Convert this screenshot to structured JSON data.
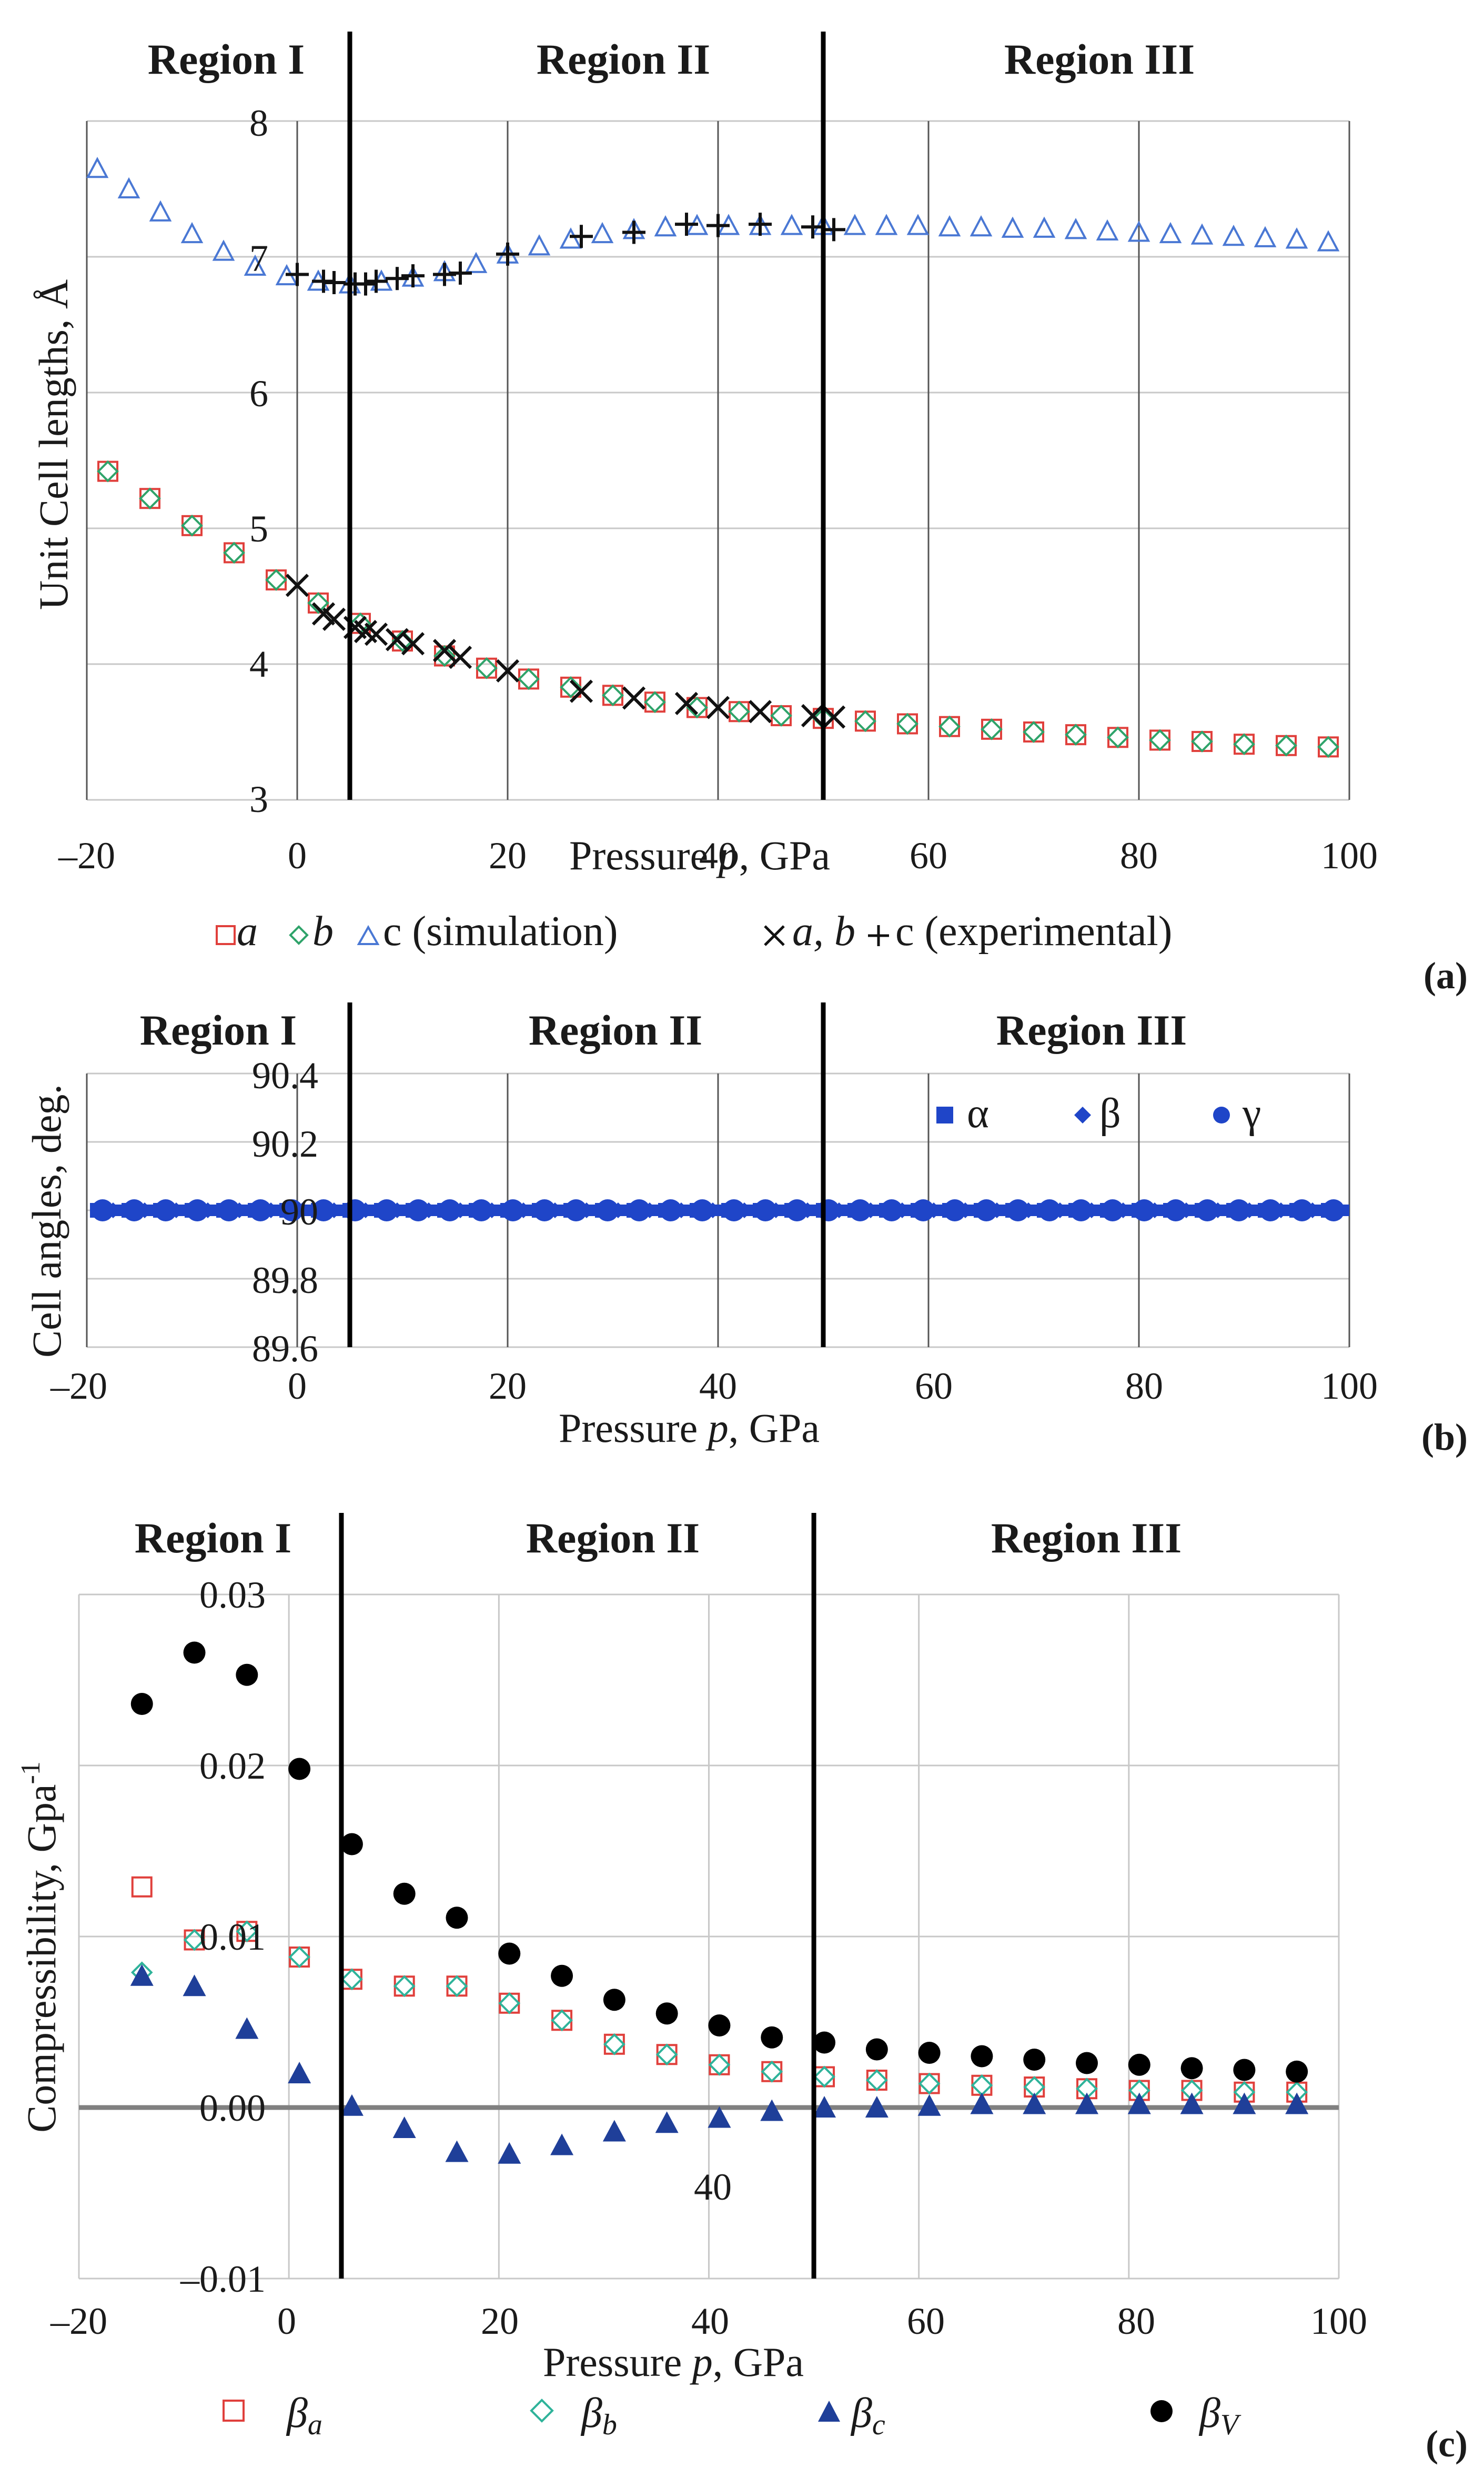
{
  "chart_data": [
    {
      "id": "a",
      "type": "scatter",
      "panel_label": "(a)",
      "xlabel_prefix": "Pressure ",
      "xlabel_var": "p",
      "xlabel_suffix": ", GPa",
      "ylabel": "Unit Cell lengths, Å",
      "xlim": [
        -20,
        100
      ],
      "ylim": [
        3,
        8
      ],
      "xticks": [
        -20,
        0,
        20,
        40,
        60,
        80,
        100
      ],
      "yticks": [
        3,
        4,
        5,
        6,
        7,
        8
      ],
      "xtick_labels": [
        "–20",
        "0",
        "20",
        "40",
        "60",
        "80",
        "100"
      ],
      "ytick_labels": [
        "3",
        "4",
        "5",
        "6",
        "7",
        "8"
      ],
      "regions": [
        {
          "label": "Region I",
          "start": -20,
          "end": 5
        },
        {
          "label": "Region II",
          "start": 5,
          "end": 50
        },
        {
          "label": "Region III",
          "start": 50,
          "end": 100
        }
      ],
      "region_boundaries": [
        5,
        50
      ],
      "legend_items": [
        "a",
        "b",
        "c (simulation)",
        "a, b",
        "c (experimental)"
      ],
      "series": [
        {
          "name": "a",
          "marker": "open-square",
          "color": "#e0403c",
          "x": [
            -18,
            -14,
            -10,
            -6,
            -2,
            2,
            6,
            10,
            14,
            18,
            22,
            26,
            30,
            34,
            38,
            42,
            46,
            50,
            54,
            58,
            62,
            66,
            70,
            74,
            78,
            82,
            86,
            90,
            94,
            98
          ],
          "y": [
            5.42,
            5.22,
            5.02,
            4.82,
            4.62,
            4.45,
            4.3,
            4.17,
            4.06,
            3.97,
            3.89,
            3.83,
            3.77,
            3.72,
            3.68,
            3.65,
            3.62,
            3.6,
            3.58,
            3.56,
            3.54,
            3.52,
            3.5,
            3.48,
            3.46,
            3.44,
            3.43,
            3.41,
            3.4,
            3.39
          ]
        },
        {
          "name": "b",
          "marker": "open-diamond",
          "color": "#2fa36a",
          "x": [
            -18,
            -14,
            -10,
            -6,
            -2,
            2,
            6,
            10,
            14,
            18,
            22,
            26,
            30,
            34,
            38,
            42,
            46,
            50,
            54,
            58,
            62,
            66,
            70,
            74,
            78,
            82,
            86,
            90,
            94,
            98
          ],
          "y": [
            5.42,
            5.22,
            5.02,
            4.82,
            4.62,
            4.45,
            4.3,
            4.17,
            4.06,
            3.97,
            3.89,
            3.83,
            3.77,
            3.72,
            3.68,
            3.65,
            3.62,
            3.6,
            3.58,
            3.56,
            3.54,
            3.52,
            3.5,
            3.48,
            3.46,
            3.44,
            3.43,
            3.41,
            3.4,
            3.39
          ]
        },
        {
          "name": "c (simulation)",
          "marker": "open-triangle",
          "color": "#4a78d4",
          "x": [
            -19,
            -16,
            -13,
            -10,
            -7,
            -4,
            -1,
            2,
            5,
            8,
            11,
            14,
            17,
            20,
            23,
            26,
            29,
            32,
            35,
            38,
            41,
            44,
            47,
            50,
            53,
            56,
            59,
            62,
            65,
            68,
            71,
            74,
            77,
            80,
            83,
            86,
            89,
            92,
            95,
            98
          ],
          "y": [
            7.65,
            7.5,
            7.33,
            7.17,
            7.04,
            6.93,
            6.86,
            6.82,
            6.8,
            6.82,
            6.85,
            6.89,
            6.95,
            7.02,
            7.08,
            7.13,
            7.17,
            7.2,
            7.22,
            7.23,
            7.23,
            7.23,
            7.23,
            7.23,
            7.23,
            7.23,
            7.23,
            7.22,
            7.22,
            7.21,
            7.21,
            7.2,
            7.19,
            7.18,
            7.17,
            7.16,
            7.15,
            7.14,
            7.13,
            7.11
          ]
        },
        {
          "name": "a, b (experimental)",
          "marker": "x",
          "color": "#111111",
          "x": [
            0,
            2.5,
            3.5,
            5.5,
            6.5,
            7.5,
            9.5,
            11,
            14,
            15.5,
            20,
            27,
            32,
            37,
            40,
            44,
            49,
            51
          ],
          "y": [
            4.58,
            4.37,
            4.33,
            4.27,
            4.24,
            4.22,
            4.18,
            4.15,
            4.1,
            4.05,
            3.95,
            3.8,
            3.75,
            3.71,
            3.68,
            3.65,
            3.62,
            3.61
          ]
        },
        {
          "name": "c (experimental)",
          "marker": "plus",
          "color": "#111111",
          "x": [
            0,
            2.5,
            3.5,
            5.5,
            6.5,
            7.5,
            9.5,
            11,
            14,
            15.5,
            20,
            27,
            32,
            37,
            40,
            44,
            49,
            51
          ],
          "y": [
            6.87,
            6.82,
            6.81,
            6.8,
            6.8,
            6.82,
            6.84,
            6.86,
            6.87,
            6.88,
            7.02,
            7.15,
            7.18,
            7.24,
            7.23,
            7.24,
            7.22,
            7.2
          ]
        }
      ]
    },
    {
      "id": "b",
      "type": "scatter",
      "panel_label": "(b)",
      "xlabel_prefix": "Pressure ",
      "xlabel_var": "p",
      "xlabel_suffix": ", GPa",
      "ylabel": "Cell angles, deg.",
      "xlim": [
        -20,
        100
      ],
      "ylim": [
        89.6,
        90.4
      ],
      "xticks": [
        -20,
        0,
        20,
        40,
        60,
        80,
        100
      ],
      "yticks": [
        89.6,
        89.8,
        90,
        90.2,
        90.4
      ],
      "xtick_labels": [
        "–20",
        "0",
        "20",
        "40",
        "60",
        "80",
        "100"
      ],
      "ytick_labels": [
        "89.6",
        "89.8",
        "90",
        "90.2",
        "90.4"
      ],
      "regions": [
        {
          "label": "Region I",
          "start": -20,
          "end": 5
        },
        {
          "label": "Region II",
          "start": 5,
          "end": 50
        },
        {
          "label": "Region III",
          "start": 50,
          "end": 100
        }
      ],
      "region_boundaries": [
        5,
        50
      ],
      "legend_items": [
        "α",
        "β",
        "γ"
      ],
      "series": [
        {
          "name": "α",
          "marker": "filled-square",
          "color": "#1f45c8",
          "x": [
            -19,
            -16,
            -13,
            -10,
            -7,
            -4,
            -1,
            2,
            5,
            8,
            11,
            14,
            17,
            20,
            23,
            26,
            29,
            32,
            35,
            38,
            41,
            44,
            47,
            50,
            53,
            56,
            59,
            62,
            65,
            68,
            71,
            74,
            77,
            80,
            83,
            86,
            89,
            92,
            95,
            98
          ],
          "y": [
            90,
            90,
            90,
            90,
            90,
            90,
            90,
            90,
            90,
            90,
            90,
            90,
            90,
            90,
            90,
            90,
            90,
            90,
            90,
            90,
            90,
            90,
            90,
            90,
            90,
            90,
            90,
            90,
            90,
            90,
            90,
            90,
            90,
            90,
            90,
            90,
            90,
            90,
            90,
            90
          ]
        },
        {
          "name": "β",
          "marker": "filled-diamond",
          "color": "#1f45c8",
          "x": [
            -17.5,
            -14.5,
            -11.5,
            -8.5,
            -5.5,
            -2.5,
            0.5,
            3.5,
            6.5,
            9.5,
            12.5,
            15.5,
            18.5,
            21.5,
            24.5,
            27.5,
            30.5,
            33.5,
            36.5,
            39.5,
            42.5,
            45.5,
            48.5,
            51.5,
            54.5,
            57.5,
            60.5,
            63.5,
            66.5,
            69.5,
            72.5,
            75.5,
            78.5,
            81.5,
            84.5,
            87.5,
            90.5,
            93.5,
            96.5,
            99
          ],
          "y": [
            90,
            90,
            90,
            90,
            90,
            90,
            90,
            90,
            90,
            90,
            90,
            90,
            90,
            90,
            90,
            90,
            90,
            90,
            90,
            90,
            90,
            90,
            90,
            90,
            90,
            90,
            90,
            90,
            90,
            90,
            90,
            90,
            90,
            90,
            90,
            90,
            90,
            90,
            90,
            90
          ]
        },
        {
          "name": "γ",
          "marker": "filled-circle",
          "color": "#1f45c8",
          "x": [
            -18.5,
            -15.5,
            -12.5,
            -9.5,
            -6.5,
            -3.5,
            -0.5,
            2.5,
            5.5,
            8.5,
            11.5,
            14.5,
            17.5,
            20.5,
            23.5,
            26.5,
            29.5,
            32.5,
            35.5,
            38.5,
            41.5,
            44.5,
            47.5,
            50.5,
            53.5,
            56.5,
            59.5,
            62.5,
            65.5,
            68.5,
            71.5,
            74.5,
            77.5,
            80.5,
            83.5,
            86.5,
            89.5,
            92.5,
            95.5,
            98.5
          ],
          "y": [
            90,
            90,
            90,
            90,
            90,
            90,
            90,
            90,
            90,
            90,
            90,
            90,
            90,
            90,
            90,
            90,
            90,
            90,
            90,
            90,
            90,
            90,
            90,
            90,
            90,
            90,
            90,
            90,
            90,
            90,
            90,
            90,
            90,
            90,
            90,
            90,
            90,
            90,
            90,
            90
          ]
        }
      ]
    },
    {
      "id": "c",
      "type": "scatter",
      "panel_label": "(c)",
      "xlabel_prefix": "Pressure ",
      "xlabel_var": "p",
      "xlabel_suffix": ", GPa",
      "ylabel": "Compressibility, Gpa",
      "ylabel_sup": "-1",
      "xlim": [
        -20,
        100
      ],
      "ylim": [
        -0.01,
        0.03
      ],
      "xticks": [
        -20,
        0,
        20,
        40,
        60,
        80,
        100
      ],
      "yticks": [
        -0.01,
        0,
        0.01,
        0.02,
        0.03
      ],
      "xtick_labels": [
        "–20",
        "0",
        "20",
        "40",
        "60",
        "80",
        "100"
      ],
      "ytick_labels": [
        "–0.01",
        "0.00",
        "0.01",
        "0.02",
        "0.03"
      ],
      "extra_label": "40",
      "regions": [
        {
          "label": "Region I",
          "start": -20,
          "end": 5
        },
        {
          "label": "Region II",
          "start": 5,
          "end": 50
        },
        {
          "label": "Region III",
          "start": 50,
          "end": 100
        }
      ],
      "region_boundaries": [
        5,
        50
      ],
      "legend_items": [
        "β",
        "β",
        "β",
        "β"
      ],
      "legend_subs": [
        "a",
        "b",
        "c",
        "V"
      ],
      "series": [
        {
          "name": "βa",
          "marker": "open-square",
          "color": "#e0403c",
          "x": [
            -14,
            -9,
            -4,
            1,
            6,
            11,
            16,
            21,
            26,
            31,
            36,
            41,
            46,
            51,
            56,
            61,
            66,
            71,
            76,
            81,
            86,
            91,
            96
          ],
          "y": [
            0.0129,
            0.0098,
            0.0103,
            0.0088,
            0.0075,
            0.0071,
            0.0071,
            0.0061,
            0.0051,
            0.0037,
            0.0031,
            0.0025,
            0.0021,
            0.0018,
            0.0016,
            0.0014,
            0.0013,
            0.0012,
            0.0011,
            0.001,
            0.001,
            0.0009,
            0.0009
          ]
        },
        {
          "name": "βb",
          "marker": "open-diamond",
          "color": "#2fb39a",
          "x": [
            -14,
            -9,
            -4,
            1,
            6,
            11,
            16,
            21,
            26,
            31,
            36,
            41,
            46,
            51,
            56,
            61,
            66,
            71,
            76,
            81,
            86,
            91,
            96
          ],
          "y": [
            0.0079,
            0.0098,
            0.0103,
            0.0088,
            0.0075,
            0.0071,
            0.0071,
            0.0061,
            0.0051,
            0.0037,
            0.0031,
            0.0025,
            0.0021,
            0.0018,
            0.0016,
            0.0014,
            0.0013,
            0.0012,
            0.0011,
            0.001,
            0.001,
            0.0009,
            0.0009
          ]
        },
        {
          "name": "βc",
          "marker": "filled-triangle",
          "color": "#1f3f99",
          "x": [
            -14,
            -9,
            -4,
            1,
            6,
            11,
            16,
            21,
            26,
            31,
            36,
            41,
            46,
            51,
            56,
            61,
            66,
            71,
            76,
            81,
            86,
            91,
            96
          ],
          "y": [
            0.0077,
            0.0071,
            0.0046,
            0.002,
            0.0001,
            -0.0012,
            -0.0026,
            -0.0027,
            -0.0022,
            -0.0014,
            -0.0009,
            -0.0006,
            -0.0002,
            0.0,
            0.0,
            0.0001,
            0.0002,
            0.0002,
            0.0002,
            0.0002,
            0.0002,
            0.0002,
            0.0002
          ]
        },
        {
          "name": "βV",
          "marker": "filled-circle",
          "color": "#000000",
          "x": [
            -14,
            -9,
            -4,
            1,
            6,
            11,
            16,
            21,
            26,
            31,
            36,
            41,
            46,
            51,
            56,
            61,
            66,
            71,
            76,
            81,
            86,
            91,
            96
          ],
          "y": [
            0.0236,
            0.0266,
            0.0253,
            0.0198,
            0.0154,
            0.0125,
            0.0111,
            0.009,
            0.0077,
            0.0063,
            0.0055,
            0.0048,
            0.0041,
            0.0038,
            0.0034,
            0.0032,
            0.003,
            0.0028,
            0.0026,
            0.0025,
            0.0023,
            0.0022,
            0.0021
          ]
        }
      ]
    }
  ]
}
